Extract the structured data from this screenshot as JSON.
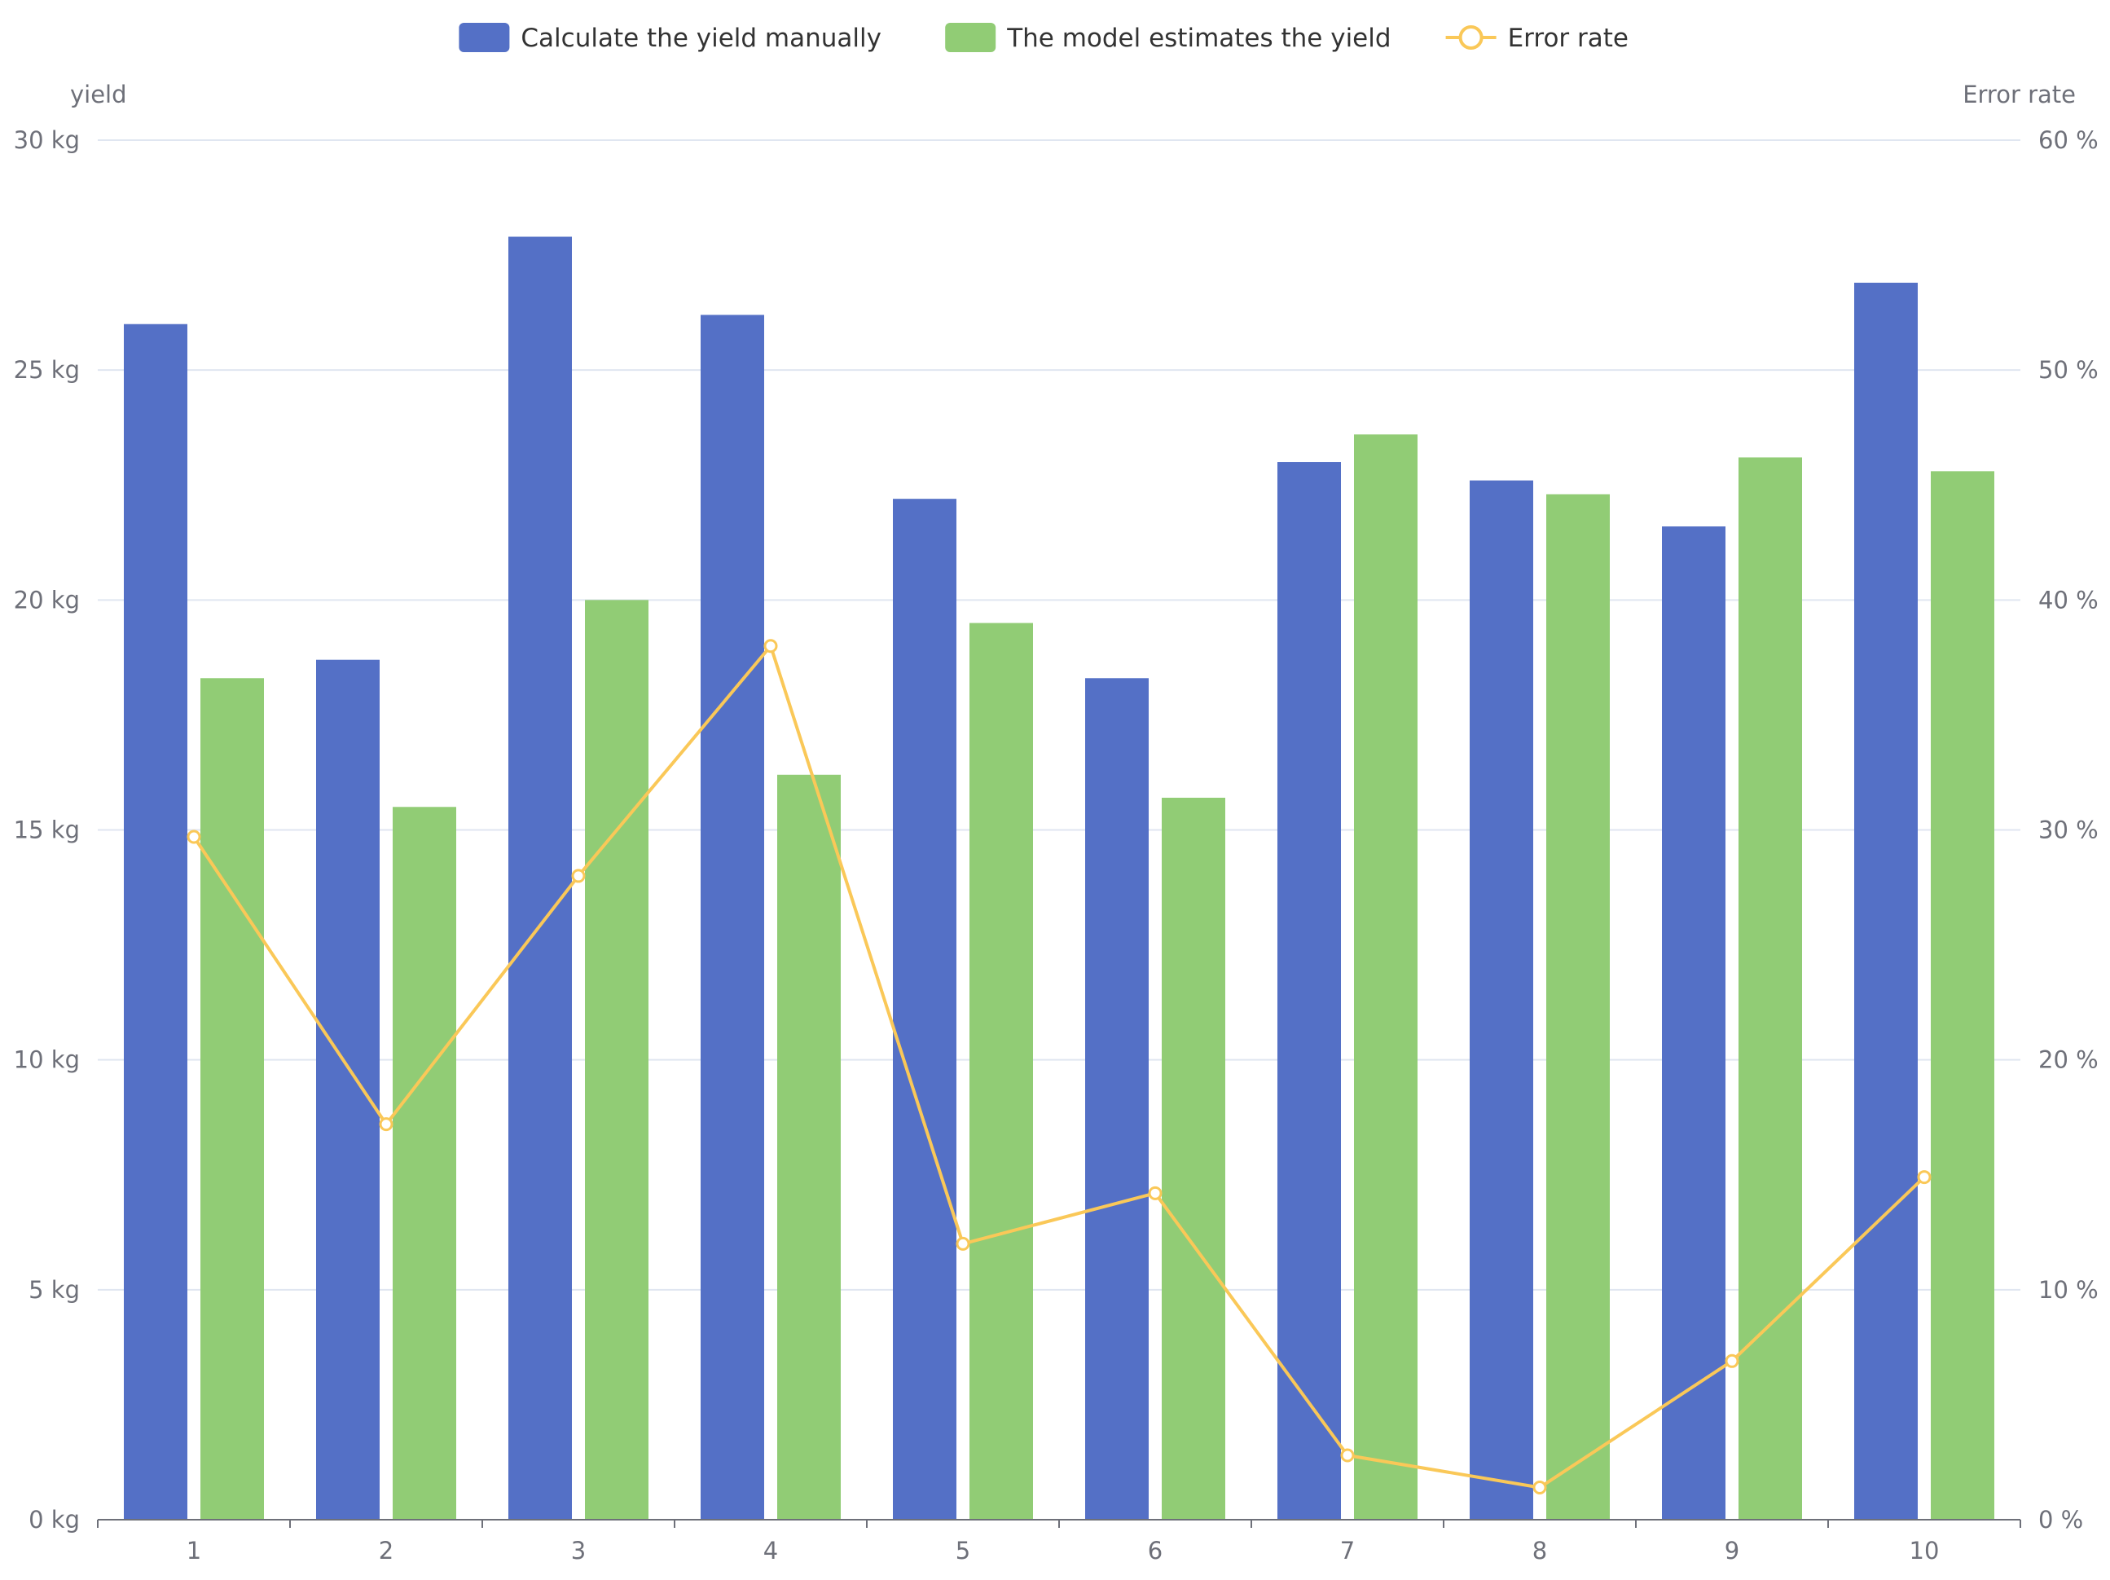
{
  "chart_data": {
    "type": "bar",
    "categories": [
      "1",
      "2",
      "3",
      "4",
      "5",
      "6",
      "7",
      "8",
      "9",
      "10"
    ],
    "series": [
      {
        "name": "Calculate the yield manually",
        "type": "bar",
        "axis": "left",
        "color": "#5470c6",
        "values": [
          26.0,
          18.7,
          27.9,
          26.2,
          22.2,
          18.3,
          23.0,
          22.6,
          21.6,
          26.9
        ]
      },
      {
        "name": "The model estimates the yield",
        "type": "bar",
        "axis": "left",
        "color": "#91cc75",
        "values": [
          18.3,
          15.5,
          20.0,
          16.2,
          19.5,
          15.7,
          23.6,
          22.3,
          23.1,
          22.8
        ]
      },
      {
        "name": "Error rate",
        "type": "line",
        "axis": "right",
        "color": "#fac858",
        "values": [
          29.7,
          17.2,
          28.0,
          38.0,
          12.0,
          14.2,
          2.8,
          1.4,
          6.9,
          14.9
        ]
      }
    ],
    "left_axis": {
      "label": "yield",
      "min": 0,
      "max": 30,
      "ticks": [
        0,
        5,
        10,
        15,
        20,
        25,
        30
      ],
      "tick_labels": [
        "0 kg",
        "5 kg",
        "10 kg",
        "15 kg",
        "20 kg",
        "25 kg",
        "30 kg"
      ]
    },
    "right_axis": {
      "label": "Error rate",
      "min": 0,
      "max": 60,
      "ticks": [
        0,
        10,
        20,
        30,
        40,
        50,
        60
      ],
      "tick_labels": [
        "0 %",
        "10 %",
        "20 %",
        "30 %",
        "40 %",
        "50 %",
        "60 %"
      ]
    },
    "legend_position": "top-center",
    "grid": "horizontal",
    "title": ""
  }
}
